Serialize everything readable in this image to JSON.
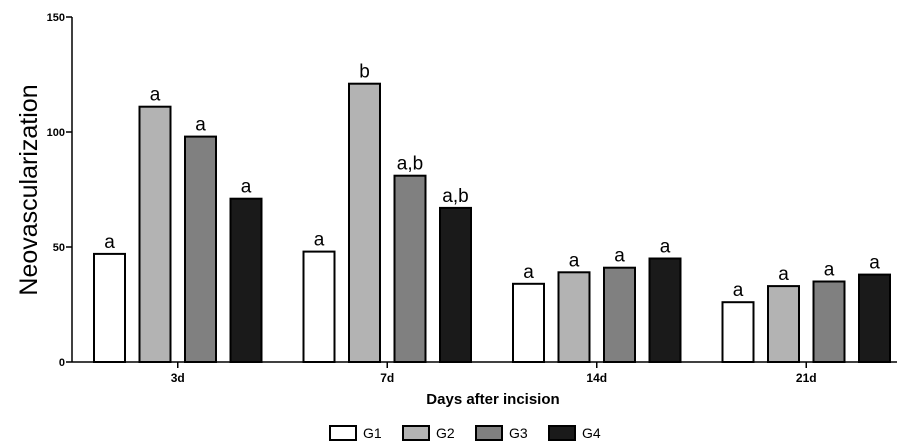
{
  "chart_data": {
    "type": "bar",
    "title": "",
    "xlabel": "Days after incision",
    "ylabel": "Neovascularization",
    "ylim": [
      0,
      150
    ],
    "yticks": [
      0,
      50,
      100,
      150
    ],
    "categories": [
      "3d",
      "7d",
      "14d",
      "21d"
    ],
    "series": [
      {
        "name": "G1",
        "color": "#ffffff",
        "values": [
          47,
          48,
          34,
          26
        ],
        "labels": [
          "a",
          "a",
          "a",
          "a"
        ]
      },
      {
        "name": "G2",
        "color": "#b3b3b3",
        "values": [
          111,
          121,
          39,
          33
        ],
        "labels": [
          "a",
          "b",
          "a",
          "a"
        ]
      },
      {
        "name": "G3",
        "color": "#808080",
        "values": [
          98,
          81,
          41,
          35
        ],
        "labels": [
          "a",
          "a,b",
          "a",
          "a"
        ]
      },
      {
        "name": "G4",
        "color": "#1a1a1a",
        "values": [
          71,
          67,
          45,
          38
        ],
        "labels": [
          "a",
          "a,b",
          "a",
          "a"
        ]
      }
    ],
    "legend_position": "bottom",
    "grid": false
  }
}
